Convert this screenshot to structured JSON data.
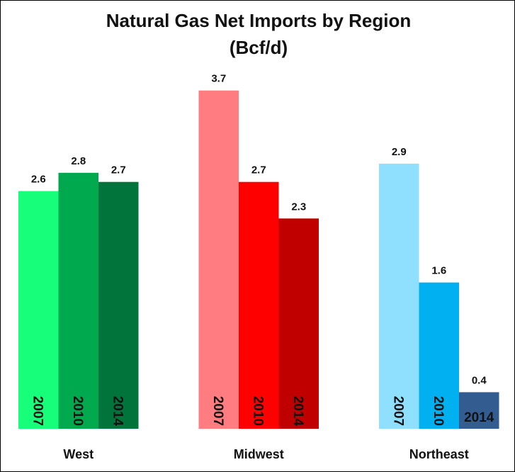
{
  "chart_data": {
    "type": "bar",
    "title": "Natural Gas Net Imports by Region",
    "subtitle": "(Bcf/d)",
    "categories": [
      "West",
      "Midwest",
      "Northeast"
    ],
    "series": [
      {
        "name": "2007",
        "colors": [
          "#17ff7a",
          "#ff7c80",
          "#8fdfff"
        ],
        "values": [
          2.6,
          3.7,
          2.9
        ]
      },
      {
        "name": "2010",
        "colors": [
          "#00a84e",
          "#ff0000",
          "#00b0f0"
        ],
        "values": [
          2.8,
          2.7,
          1.6
        ]
      },
      {
        "name": "2014",
        "colors": [
          "#00743a",
          "#c00000",
          "#335c91"
        ],
        "values": [
          2.7,
          2.3,
          0.4
        ]
      }
    ]
  }
}
